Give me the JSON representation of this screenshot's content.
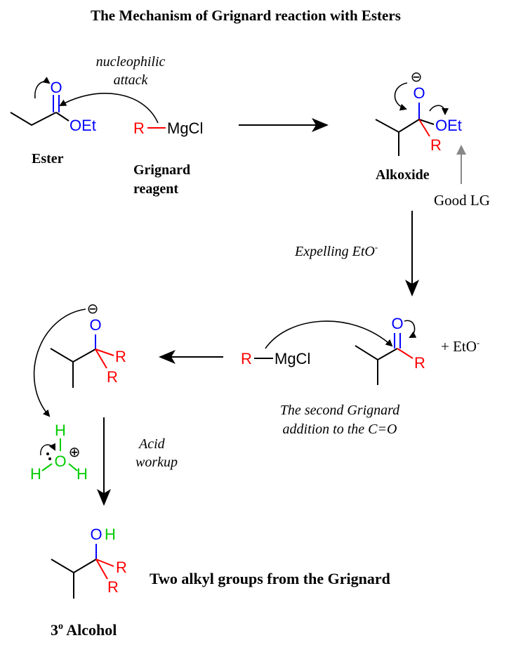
{
  "title": "The Mechanism of Grignard reaction with Esters",
  "colors": {
    "bond": "#000000",
    "oxygen": "#0000ff",
    "r_group": "#ff0000",
    "water": "#00cc00",
    "leaving_group_arrow": "#888888"
  },
  "step1": {
    "ester_label": "Ester",
    "ester_oxygen_carbonyl": "O",
    "ester_oet": "OEt",
    "arrow_label_line1": "nucleophilic",
    "arrow_label_line2": "attack",
    "grignard_r": "R",
    "grignard_mgcl": "MgCl",
    "grignard_label_line1": "Grignard",
    "grignard_label_line2": "reagent"
  },
  "step2": {
    "alkoxide_o": "O",
    "alkoxide_charge": "⊖",
    "alkoxide_oet": "OEt",
    "alkoxide_r": "R",
    "alkoxide_label": "Alkoxide",
    "good_lg": "Good LG",
    "expelling_label": "Expelling EtO",
    "expelling_sup": "-"
  },
  "step3": {
    "ketone_o": "O",
    "ketone_r": "R",
    "plus_eto": "+ EtO",
    "plus_eto_sup": "-",
    "grignard_r": "R",
    "grignard_mgcl": "MgCl",
    "caption_line1": "The second Grignard",
    "caption_line2": "addition to the C=O"
  },
  "step4": {
    "alkoxide_o": "O",
    "alkoxide_charge": "⊖",
    "r_top": "R",
    "r_bottom": "R",
    "hydronium_h_top": "H",
    "hydronium_o": "O",
    "hydronium_h_left": "H",
    "hydronium_h_right": "H",
    "hydronium_charge": "⊕",
    "acid_line1": "Acid",
    "acid_line2": "workup"
  },
  "product": {
    "o": "O",
    "h": "H",
    "r_top": "R",
    "r_bottom": "R",
    "caption": "Two alkyl groups from the Grignard",
    "label_degree": "3",
    "label_sup": "o",
    "label_rest": " Alcohol"
  }
}
